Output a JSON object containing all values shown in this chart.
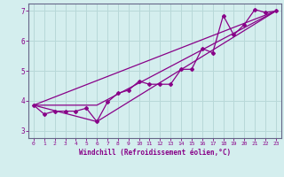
{
  "xlabel": "Windchill (Refroidissement éolien,°C)",
  "bg_color": "#d4eeee",
  "grid_color": "#b8d8d8",
  "line_color": "#880088",
  "spine_color": "#666688",
  "xlim": [
    -0.5,
    23.5
  ],
  "ylim": [
    2.75,
    7.25
  ],
  "yticks": [
    3,
    4,
    5,
    6,
    7
  ],
  "xticks": [
    0,
    1,
    2,
    3,
    4,
    5,
    6,
    7,
    8,
    9,
    10,
    11,
    12,
    13,
    14,
    15,
    16,
    17,
    18,
    19,
    20,
    21,
    22,
    23
  ],
  "line1_x": [
    0,
    1,
    2,
    3,
    4,
    5,
    6,
    7,
    8,
    9,
    10,
    11,
    12,
    13,
    14,
    15,
    16,
    17,
    18,
    19,
    20,
    21,
    22,
    23
  ],
  "line1_y": [
    3.85,
    3.55,
    3.65,
    3.65,
    3.65,
    3.75,
    3.3,
    3.95,
    4.25,
    4.35,
    4.65,
    4.55,
    4.55,
    4.55,
    5.05,
    5.05,
    5.75,
    5.6,
    6.85,
    6.2,
    6.55,
    7.05,
    6.95,
    7.0
  ],
  "line2_x": [
    0,
    23
  ],
  "line2_y": [
    3.85,
    7.0
  ],
  "line3_x": [
    0,
    6,
    23
  ],
  "line3_y": [
    3.85,
    3.85,
    7.0
  ],
  "line4_x": [
    0,
    6,
    23
  ],
  "line4_y": [
    3.85,
    3.3,
    7.0
  ]
}
